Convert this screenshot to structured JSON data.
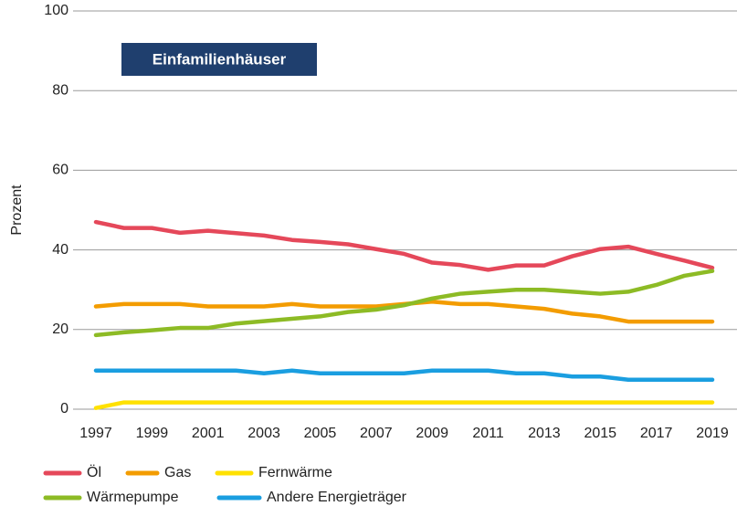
{
  "chart_data": {
    "type": "line",
    "annotation": "Einfamilienhäuser",
    "y_label": "Prozent",
    "x": [
      1997,
      1998,
      1999,
      2000,
      2001,
      2002,
      2003,
      2004,
      2005,
      2006,
      2007,
      2008,
      2009,
      2010,
      2011,
      2012,
      2013,
      2014,
      2015,
      2016,
      2017,
      2018,
      2019
    ],
    "xlim": [
      1997,
      2019
    ],
    "xticks": [
      1997,
      1999,
      2001,
      2003,
      2005,
      2007,
      2009,
      2011,
      2013,
      2015,
      2017,
      2019
    ],
    "ylim": [
      0,
      100
    ],
    "yticks": [
      0,
      20,
      40,
      60,
      80,
      100
    ],
    "grid": true,
    "legend": "bottom",
    "series": [
      {
        "name": "Öl",
        "color": "#e5485a",
        "values": [
          47,
          45.5,
          45.5,
          44.3,
          44.8,
          44.2,
          43.6,
          42.5,
          42,
          41.4,
          40.2,
          39,
          36.8,
          36.2,
          35,
          36.1,
          36.1,
          38.4,
          40.2,
          40.8,
          39,
          37.3,
          35.5
        ]
      },
      {
        "name": "Gas",
        "color": "#f39c00",
        "values": [
          25.8,
          26.4,
          26.4,
          26.4,
          25.8,
          25.8,
          25.8,
          26.4,
          25.8,
          25.8,
          25.8,
          26.4,
          27,
          26.4,
          26.4,
          25.8,
          25.2,
          24,
          23.3,
          22,
          22,
          22,
          22
        ]
      },
      {
        "name": "Fernwärme",
        "color": "#ffe100",
        "values": [
          0.3,
          1.7,
          1.7,
          1.7,
          1.7,
          1.7,
          1.7,
          1.7,
          1.7,
          1.7,
          1.7,
          1.7,
          1.7,
          1.7,
          1.7,
          1.7,
          1.7,
          1.7,
          1.7,
          1.7,
          1.7,
          1.7,
          1.7
        ]
      },
      {
        "name": "Wärmepumpe",
        "color": "#8dbb25",
        "values": [
          18.6,
          19.3,
          19.8,
          20.4,
          20.4,
          21.5,
          22.1,
          22.7,
          23.3,
          24.4,
          25,
          26.1,
          27.8,
          29,
          29.5,
          30,
          30,
          29.5,
          29,
          29.5,
          31.2,
          33.5,
          34.7
        ]
      },
      {
        "name": "Andere Energieträger",
        "color": "#1a9ee0",
        "values": [
          9.7,
          9.7,
          9.7,
          9.7,
          9.7,
          9.7,
          9,
          9.7,
          9,
          9,
          9,
          9,
          9.7,
          9.7,
          9.7,
          9,
          9,
          8.2,
          8.2,
          7.4,
          7.4,
          7.4,
          7.4
        ]
      }
    ]
  }
}
